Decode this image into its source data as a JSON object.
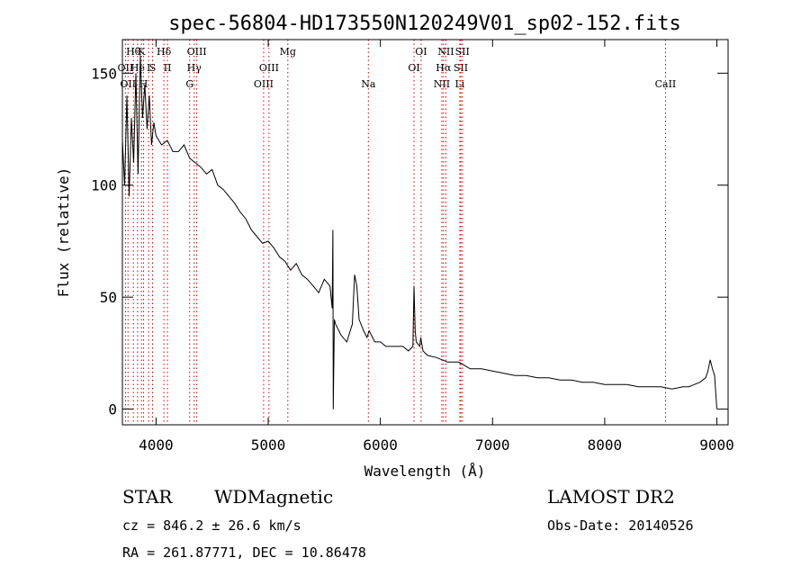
{
  "chart_data": {
    "type": "line",
    "title": "spec-56804-HD173550N120249V01_sp02-152.fits",
    "xlabel": "Wavelength (Å)",
    "ylabel": "Flux (relative)",
    "xlim": [
      3700,
      9100
    ],
    "ylim": [
      -7,
      165
    ],
    "xticks": [
      4000,
      5000,
      6000,
      7000,
      8000,
      9000
    ],
    "yticks": [
      0,
      50,
      100,
      150
    ],
    "grid": false,
    "line_color": "#000000",
    "marker_color": "#cc0000",
    "series": [
      {
        "x": [
          3700,
          3720,
          3740,
          3760,
          3780,
          3800,
          3820,
          3840,
          3860,
          3880,
          3900,
          3920,
          3940,
          3960,
          3980,
          4000,
          4050,
          4100,
          4150,
          4200,
          4250,
          4300,
          4350,
          4400,
          4450,
          4500,
          4550,
          4600,
          4650,
          4700,
          4750,
          4800,
          4850,
          4900,
          4950,
          5000,
          5050,
          5100,
          5150,
          5200,
          5250,
          5300,
          5350,
          5400,
          5450,
          5500,
          5550,
          5570,
          5577,
          5580,
          5590,
          5600,
          5650,
          5700,
          5750,
          5770,
          5790,
          5810,
          5850,
          5880,
          5900,
          5950,
          6000,
          6050,
          6100,
          6150,
          6200,
          6250,
          6290,
          6300,
          6310,
          6320,
          6350,
          6360,
          6380,
          6420,
          6500,
          6600,
          6700,
          6800,
          6900,
          7000,
          7100,
          7200,
          7300,
          7400,
          7500,
          7600,
          7700,
          7800,
          7900,
          8000,
          8100,
          8200,
          8300,
          8400,
          8500,
          8600,
          8700,
          8750,
          8800,
          8850,
          8900,
          8920,
          8940,
          8960,
          8980,
          9000
        ],
        "y": [
          120,
          100,
          140,
          95,
          130,
          110,
          150,
          105,
          158,
          130,
          145,
          125,
          140,
          118,
          128,
          122,
          118,
          120,
          115,
          115,
          118,
          112,
          110,
          108,
          105,
          107,
          100,
          98,
          95,
          92,
          88,
          85,
          80,
          77,
          74,
          75,
          72,
          68,
          66,
          62,
          65,
          60,
          58,
          55,
          52,
          58,
          55,
          45,
          80,
          0,
          40,
          38,
          33,
          30,
          38,
          60,
          55,
          40,
          35,
          32,
          35,
          30,
          30,
          28,
          28,
          28,
          28,
          26,
          28,
          55,
          35,
          30,
          28,
          32,
          26,
          24,
          23,
          21,
          21,
          18,
          18,
          17,
          16,
          15,
          15,
          14,
          14,
          13,
          13,
          12,
          12,
          11,
          11,
          11,
          10,
          10,
          10,
          9,
          10,
          10,
          11,
          12,
          14,
          17,
          22,
          18,
          15,
          0
        ]
      }
    ],
    "lines": [
      {
        "wavelength": 3727,
        "label": "OII",
        "row": 1
      },
      {
        "wavelength": 3750,
        "label": "OII",
        "row": 2
      },
      {
        "wavelength": 3798,
        "label": "Hθ",
        "row": 0
      },
      {
        "wavelength": 3835,
        "label": "He",
        "row": 1
      },
      {
        "wavelength": 3870,
        "label": "K",
        "row": 0
      },
      {
        "wavelength": 3889,
        "label": "H",
        "row": 2
      },
      {
        "wavelength": 3934,
        "label": "I",
        "row": 1
      },
      {
        "wavelength": 3969,
        "label": "S",
        "row": 1
      },
      {
        "wavelength": 4070,
        "label": "Hδ",
        "row": 0
      },
      {
        "wavelength": 4102,
        "label": "II",
        "row": 1
      },
      {
        "wavelength": 4300,
        "label": "G",
        "row": 2
      },
      {
        "wavelength": 4340,
        "label": "Hγ",
        "row": 1
      },
      {
        "wavelength": 4363,
        "label": "OIII",
        "row": 0
      },
      {
        "wavelength": 4959,
        "label": "OIII",
        "row": 2
      },
      {
        "wavelength": 5007,
        "label": "OIII",
        "row": 1
      },
      {
        "wavelength": 5175,
        "label": "Mg",
        "row": 0
      },
      {
        "wavelength": 5893,
        "label": "Na",
        "row": 2
      },
      {
        "wavelength": 6300,
        "label": "OI",
        "row": 1
      },
      {
        "wavelength": 6363,
        "label": "OI",
        "row": 0
      },
      {
        "wavelength": 6548,
        "label": "NII",
        "row": 2
      },
      {
        "wavelength": 6563,
        "label": "Hα",
        "row": 1
      },
      {
        "wavelength": 6584,
        "label": "NII",
        "row": 0
      },
      {
        "wavelength": 6717,
        "label": "SII",
        "row": 1
      },
      {
        "wavelength": 6708,
        "label": "Li",
        "row": 2
      },
      {
        "wavelength": 6731,
        "label": "SII",
        "row": 0
      },
      {
        "wavelength": 8542,
        "label": "CaII",
        "row": 2
      }
    ]
  },
  "info": {
    "class": "STAR",
    "subclass": "WDMagnetic",
    "survey": "LAMOST DR2",
    "redshift": "cz = 846.2 ± 26.6 km/s",
    "obs_date": "Obs-Date: 20140526",
    "coords": "RA = 261.87771, DEC =  10.86478"
  }
}
